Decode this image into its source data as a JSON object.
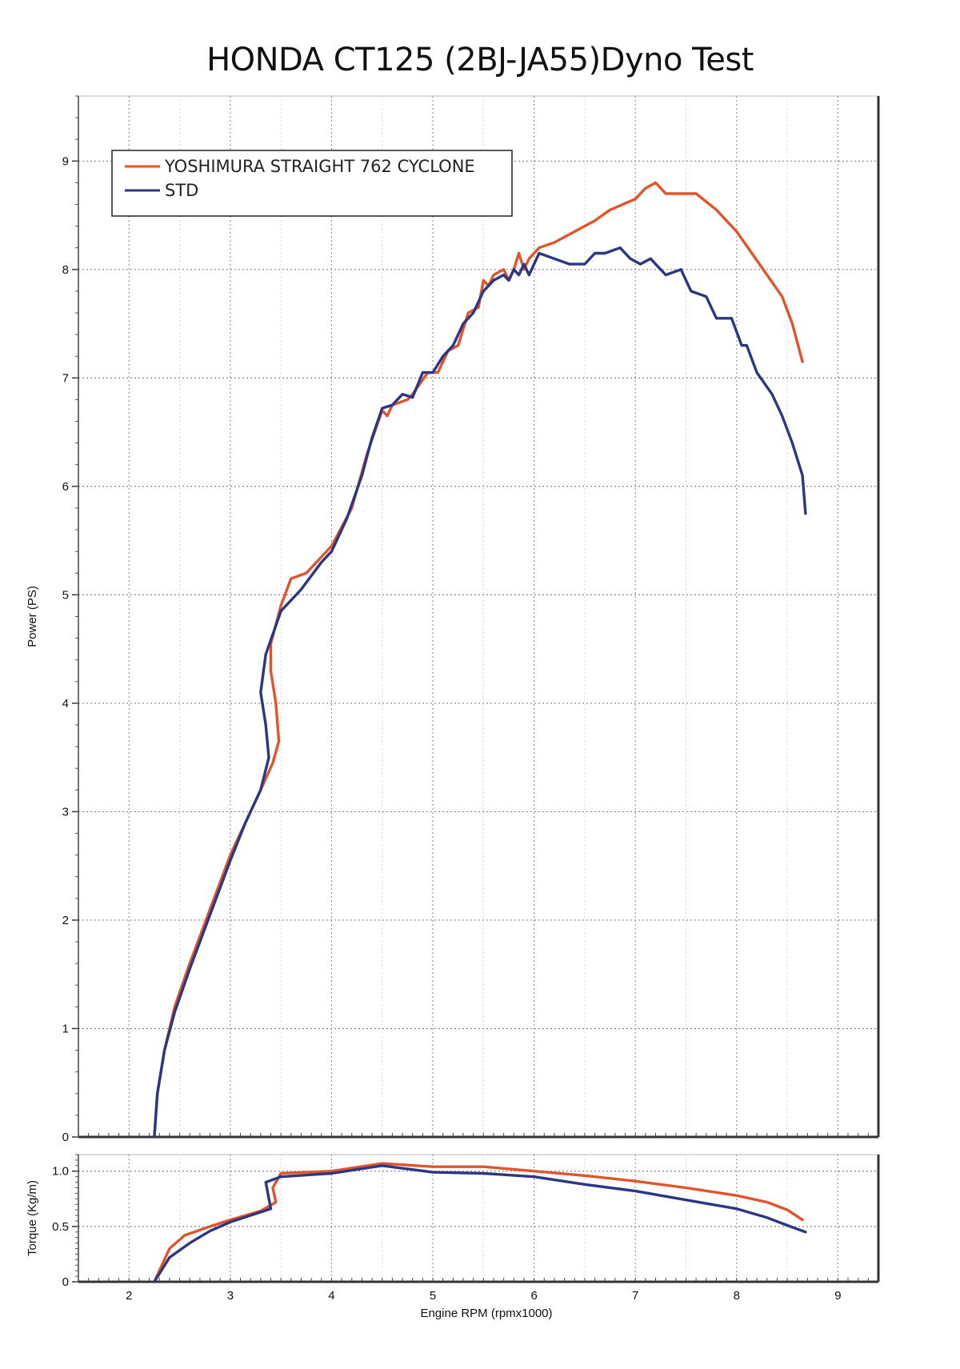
{
  "chart_data": [
    {
      "type": "line",
      "title": "HONDA CT125 (2BJ-JA55)Dyno Test",
      "ylabel": "Power (PS)",
      "xlabel": "",
      "xlim": [
        1.5,
        9.4
      ],
      "ylim": [
        0,
        9.6
      ],
      "x_ticks": [
        "2",
        "3",
        "4",
        "5",
        "6",
        "7",
        "8",
        "9"
      ],
      "y_ticks": [
        "0",
        "1",
        "2",
        "3",
        "4",
        "5",
        "6",
        "7",
        "8",
        "9"
      ],
      "grid": true,
      "legend_position": "top-left",
      "series": [
        {
          "name": "YOSHIMURA STRAIGHT 762 CYCLONE",
          "color": "#e0552c",
          "points": [
            [
              2.25,
              0
            ],
            [
              2.28,
              0.4
            ],
            [
              2.35,
              0.8
            ],
            [
              2.45,
              1.2
            ],
            [
              2.6,
              1.6
            ],
            [
              2.8,
              2.1
            ],
            [
              3.0,
              2.6
            ],
            [
              3.15,
              2.9
            ],
            [
              3.3,
              3.2
            ],
            [
              3.42,
              3.45
            ],
            [
              3.48,
              3.65
            ],
            [
              3.45,
              4.0
            ],
            [
              3.4,
              4.3
            ],
            [
              3.4,
              4.55
            ],
            [
              3.5,
              4.9
            ],
            [
              3.6,
              5.15
            ],
            [
              3.75,
              5.2
            ],
            [
              3.9,
              5.35
            ],
            [
              4.0,
              5.45
            ],
            [
              4.2,
              5.8
            ],
            [
              4.35,
              6.3
            ],
            [
              4.5,
              6.7
            ],
            [
              4.55,
              6.65
            ],
            [
              4.6,
              6.75
            ],
            [
              4.75,
              6.8
            ],
            [
              4.8,
              6.85
            ],
            [
              4.95,
              7.05
            ],
            [
              5.05,
              7.05
            ],
            [
              5.15,
              7.25
            ],
            [
              5.25,
              7.3
            ],
            [
              5.35,
              7.6
            ],
            [
              5.45,
              7.65
            ],
            [
              5.5,
              7.9
            ],
            [
              5.55,
              7.85
            ],
            [
              5.6,
              7.95
            ],
            [
              5.7,
              8.0
            ],
            [
              5.75,
              7.9
            ],
            [
              5.8,
              8.0
            ],
            [
              5.85,
              8.15
            ],
            [
              5.9,
              8.0
            ],
            [
              5.95,
              8.1
            ],
            [
              6.05,
              8.2
            ],
            [
              6.2,
              8.25
            ],
            [
              6.4,
              8.35
            ],
            [
              6.6,
              8.45
            ],
            [
              6.75,
              8.55
            ],
            [
              7.0,
              8.65
            ],
            [
              7.1,
              8.75
            ],
            [
              7.2,
              8.8
            ],
            [
              7.3,
              8.7
            ],
            [
              7.4,
              8.7
            ],
            [
              7.6,
              8.7
            ],
            [
              7.8,
              8.55
            ],
            [
              8.0,
              8.35
            ],
            [
              8.15,
              8.15
            ],
            [
              8.3,
              7.95
            ],
            [
              8.45,
              7.75
            ],
            [
              8.55,
              7.5
            ],
            [
              8.65,
              7.15
            ]
          ]
        },
        {
          "name": "STD",
          "color": "#2c3784",
          "points": [
            [
              2.25,
              0
            ],
            [
              2.28,
              0.4
            ],
            [
              2.35,
              0.8
            ],
            [
              2.45,
              1.15
            ],
            [
              2.6,
              1.55
            ],
            [
              2.8,
              2.05
            ],
            [
              3.0,
              2.55
            ],
            [
              3.15,
              2.9
            ],
            [
              3.3,
              3.2
            ],
            [
              3.38,
              3.5
            ],
            [
              3.35,
              3.8
            ],
            [
              3.3,
              4.1
            ],
            [
              3.35,
              4.45
            ],
            [
              3.5,
              4.85
            ],
            [
              3.7,
              5.05
            ],
            [
              3.9,
              5.3
            ],
            [
              4.0,
              5.4
            ],
            [
              4.15,
              5.7
            ],
            [
              4.3,
              6.1
            ],
            [
              4.4,
              6.45
            ],
            [
              4.5,
              6.72
            ],
            [
              4.6,
              6.75
            ],
            [
              4.7,
              6.85
            ],
            [
              4.8,
              6.82
            ],
            [
              4.9,
              7.05
            ],
            [
              5.0,
              7.05
            ],
            [
              5.1,
              7.2
            ],
            [
              5.2,
              7.3
            ],
            [
              5.3,
              7.5
            ],
            [
              5.4,
              7.6
            ],
            [
              5.5,
              7.8
            ],
            [
              5.6,
              7.9
            ],
            [
              5.7,
              7.95
            ],
            [
              5.75,
              7.9
            ],
            [
              5.8,
              8.0
            ],
            [
              5.85,
              7.95
            ],
            [
              5.9,
              8.05
            ],
            [
              5.95,
              7.95
            ],
            [
              6.05,
              8.15
            ],
            [
              6.2,
              8.1
            ],
            [
              6.35,
              8.05
            ],
            [
              6.5,
              8.05
            ],
            [
              6.6,
              8.15
            ],
            [
              6.7,
              8.15
            ],
            [
              6.85,
              8.2
            ],
            [
              6.95,
              8.1
            ],
            [
              7.05,
              8.05
            ],
            [
              7.15,
              8.1
            ],
            [
              7.3,
              7.95
            ],
            [
              7.45,
              8.0
            ],
            [
              7.55,
              7.8
            ],
            [
              7.7,
              7.75
            ],
            [
              7.8,
              7.55
            ],
            [
              7.95,
              7.55
            ],
            [
              8.05,
              7.3
            ],
            [
              8.1,
              7.3
            ],
            [
              8.2,
              7.05
            ],
            [
              8.35,
              6.85
            ],
            [
              8.45,
              6.65
            ],
            [
              8.55,
              6.4
            ],
            [
              8.65,
              6.1
            ],
            [
              8.68,
              5.75
            ]
          ]
        }
      ]
    },
    {
      "type": "line",
      "ylabel": "Torque (Kg/m)",
      "xlabel": "Engine RPM (rpmx1000)",
      "xlim": [
        1.5,
        9.4
      ],
      "ylim": [
        0,
        1.15
      ],
      "x_ticks": [
        "2",
        "3",
        "4",
        "5",
        "6",
        "7",
        "8",
        "9"
      ],
      "y_ticks": [
        "0",
        "0.5",
        "1.0"
      ],
      "grid": true,
      "series": [
        {
          "name": "YOSHIMURA STRAIGHT 762 CYCLONE",
          "color": "#e0552c",
          "points": [
            [
              2.25,
              0
            ],
            [
              2.4,
              0.3
            ],
            [
              2.55,
              0.42
            ],
            [
              2.8,
              0.5
            ],
            [
              3.0,
              0.56
            ],
            [
              3.3,
              0.64
            ],
            [
              3.45,
              0.72
            ],
            [
              3.42,
              0.85
            ],
            [
              3.5,
              0.98
            ],
            [
              4.0,
              1.0
            ],
            [
              4.5,
              1.07
            ],
            [
              5.0,
              1.04
            ],
            [
              5.5,
              1.04
            ],
            [
              6.0,
              1.0
            ],
            [
              6.5,
              0.96
            ],
            [
              7.0,
              0.91
            ],
            [
              7.5,
              0.85
            ],
            [
              8.0,
              0.78
            ],
            [
              8.3,
              0.72
            ],
            [
              8.5,
              0.65
            ],
            [
              8.65,
              0.56
            ]
          ]
        },
        {
          "name": "STD",
          "color": "#2c3784",
          "points": [
            [
              2.25,
              0
            ],
            [
              2.4,
              0.22
            ],
            [
              2.6,
              0.35
            ],
            [
              2.8,
              0.46
            ],
            [
              3.0,
              0.54
            ],
            [
              3.2,
              0.6
            ],
            [
              3.4,
              0.66
            ],
            [
              3.35,
              0.9
            ],
            [
              3.5,
              0.95
            ],
            [
              4.0,
              0.98
            ],
            [
              4.5,
              1.05
            ],
            [
              5.0,
              0.99
            ],
            [
              5.5,
              0.98
            ],
            [
              6.0,
              0.95
            ],
            [
              6.5,
              0.88
            ],
            [
              7.0,
              0.82
            ],
            [
              7.5,
              0.74
            ],
            [
              8.0,
              0.66
            ],
            [
              8.3,
              0.58
            ],
            [
              8.5,
              0.51
            ],
            [
              8.68,
              0.45
            ]
          ]
        }
      ]
    }
  ]
}
